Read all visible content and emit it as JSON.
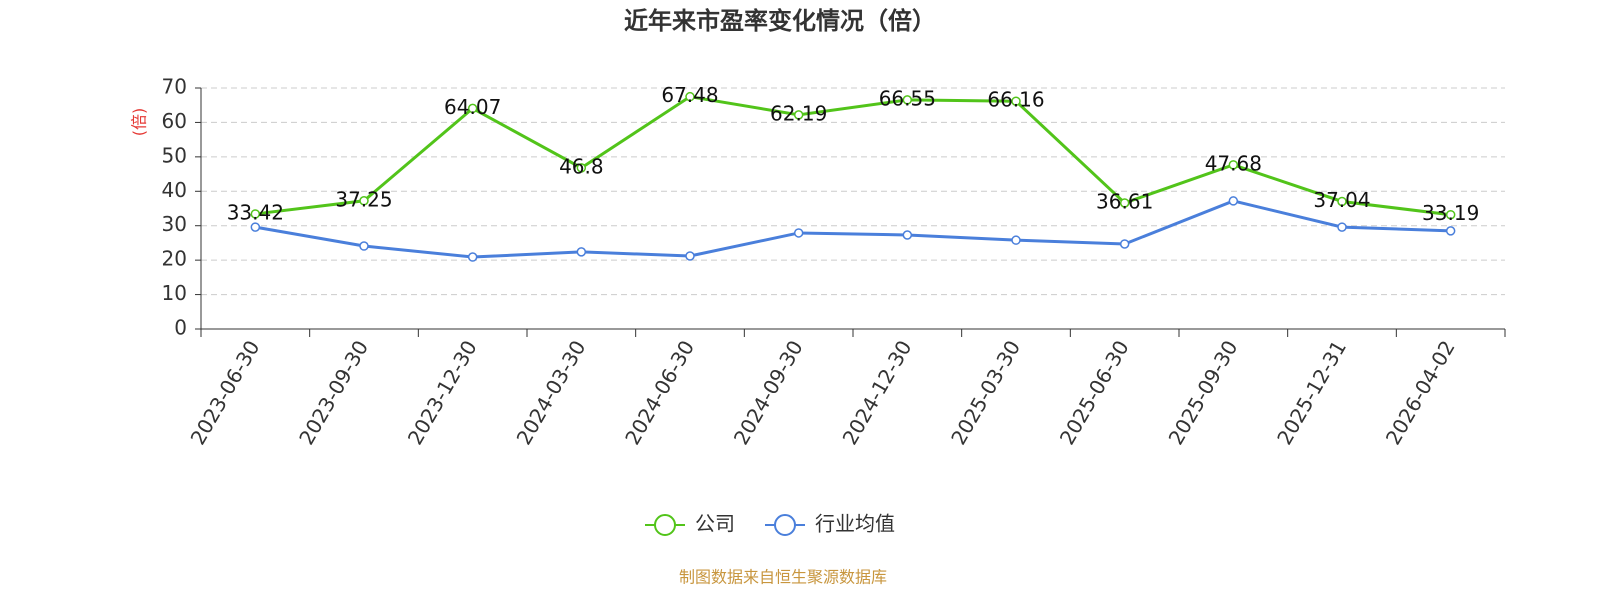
{
  "chart_data": {
    "type": "line",
    "title": "近年来市盈率变化情况（倍）",
    "y_label": "(倍)",
    "categories": [
      "2023-06-30",
      "2023-09-30",
      "2023-12-30",
      "2024-03-30",
      "2024-06-30",
      "2024-09-30",
      "2024-12-30",
      "2025-03-30",
      "2025-06-30",
      "2025-09-30",
      "2025-12-31",
      "2026-04-02"
    ],
    "series": [
      {
        "name": "公司",
        "color": "#52c41a",
        "values": [
          33.42,
          37.25,
          64.07,
          46.8,
          67.48,
          62.19,
          66.55,
          66.16,
          36.61,
          47.68,
          37.04,
          33.19
        ],
        "show_labels": true
      },
      {
        "name": "行业均值",
        "color": "#4a7fdb",
        "values": [
          29.6,
          24.1,
          20.9,
          22.4,
          21.2,
          27.9,
          27.3,
          25.8,
          24.7,
          37.2,
          29.6,
          28.5
        ],
        "show_labels": false
      }
    ],
    "ylim": [
      0,
      70
    ],
    "yticks": [
      0,
      10,
      20,
      30,
      40,
      50,
      60,
      70
    ],
    "grid": true,
    "source": "制图数据来自恒生聚源数据库"
  }
}
